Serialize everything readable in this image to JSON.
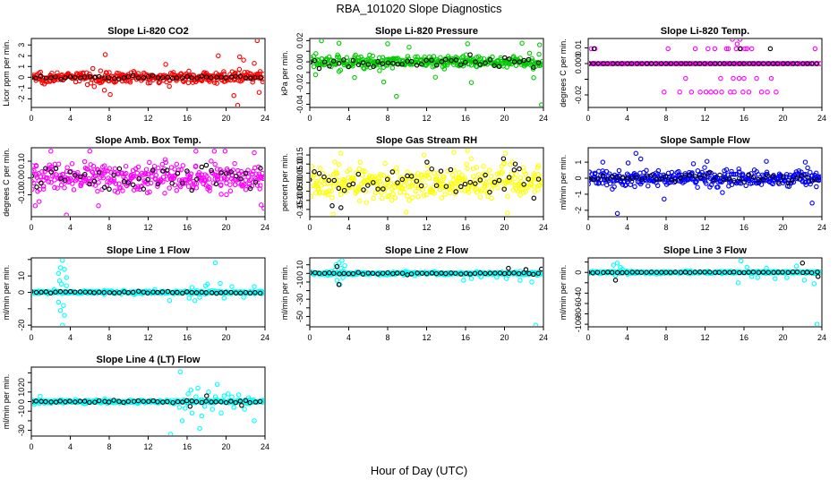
{
  "figure": {
    "title": "RBA_101020  Slope Diagnostics",
    "xlabel": "Hour of Day (UTC)"
  },
  "chart_data": [
    {
      "type": "scatter",
      "title": "Slope Li-820 CO2",
      "ylabel": "Licor ppm per min.",
      "xlim": [
        0,
        24
      ],
      "xticks": [
        0,
        4,
        8,
        12,
        16,
        20,
        24
      ],
      "ylim": [
        -2.8,
        3.6
      ],
      "yticks": [
        -2,
        -1,
        0,
        1,
        2,
        3
      ],
      "color": "#ff0000",
      "base": 0,
      "spread": 0.45,
      "outliers": [
        [
          7.6,
          2.1
        ],
        [
          19.2,
          2.0
        ],
        [
          21.4,
          1.9
        ],
        [
          23.2,
          3.4
        ],
        [
          22.9,
          1.3
        ],
        [
          13.8,
          1.2
        ],
        [
          21.2,
          -2.6
        ],
        [
          20.8,
          -1.7
        ],
        [
          23.4,
          -1.4
        ],
        [
          8.1,
          -1.6
        ],
        [
          7.5,
          -1.2
        ],
        [
          21.8,
          1.6
        ]
      ],
      "black_spread": 0.12
    },
    {
      "type": "scatter",
      "title": "Slope Li-820 Pressure",
      "ylabel": "kPa per min.",
      "xlim": [
        0,
        24
      ],
      "xticks": [
        0,
        4,
        8,
        12,
        16,
        20,
        24
      ],
      "ylim": [
        -0.043,
        0.022
      ],
      "yticks": [
        -0.04,
        -0.03,
        -0.02,
        -0.01,
        0.0,
        0.01,
        0.02
      ],
      "ytick_labels": [
        "-0.04",
        "",
        "-0.02",
        "",
        "0.00",
        "",
        "0.02"
      ],
      "color": "#00cc00",
      "base": 0.0,
      "spread": 0.0055,
      "outliers": [
        [
          1.2,
          0.0198
        ],
        [
          3.0,
          0.0175
        ],
        [
          8.0,
          0.017
        ],
        [
          10.2,
          0.0138
        ],
        [
          16.2,
          0.017
        ],
        [
          21.8,
          0.0175
        ],
        [
          23.6,
          0.016
        ],
        [
          4.6,
          -0.0148
        ],
        [
          7.6,
          -0.019
        ],
        [
          8.9,
          -0.0325
        ],
        [
          16.6,
          -0.0195
        ],
        [
          23.0,
          -0.015
        ],
        [
          23.8,
          -0.0405
        ],
        [
          0.6,
          -0.0122
        ],
        [
          12.9,
          -0.0145
        ]
      ],
      "black_spread": 0.0045
    },
    {
      "type": "scatter",
      "title": "Slope Li-820 Temp.",
      "ylabel": "degrees C per min.",
      "xlim": [
        0,
        24
      ],
      "xticks": [
        0,
        4,
        8,
        12,
        16,
        20,
        24
      ],
      "ylim": [
        -0.028,
        0.016
      ],
      "yticks": [
        -0.02,
        -0.01,
        0.0,
        0.01
      ],
      "ytick_labels": [
        "-0.02",
        "",
        "0.000",
        "0.01"
      ],
      "color": "#ff00ff",
      "base": 0,
      "spread": 0,
      "outliers": [
        [
          0.3,
          0.0095
        ],
        [
          0.7,
          0.0095
        ],
        [
          8.2,
          0.0095
        ],
        [
          9.4,
          -0.0182
        ],
        [
          10.0,
          -0.0095
        ],
        [
          11.0,
          0.0095
        ],
        [
          11.5,
          -0.0182
        ],
        [
          12.6,
          -0.0182
        ],
        [
          13.0,
          0.0095
        ],
        [
          13.7,
          -0.0182
        ],
        [
          14.2,
          0.0095
        ],
        [
          14.6,
          -0.0182
        ],
        [
          15.0,
          -0.0182
        ],
        [
          15.4,
          0.0185
        ],
        [
          15.6,
          0.0155
        ],
        [
          15.9,
          -0.0182
        ],
        [
          16.3,
          0.0095
        ],
        [
          16.8,
          0.0095
        ],
        [
          17.3,
          -0.0095
        ],
        [
          18.4,
          -0.0182
        ],
        [
          19.3,
          -0.0182
        ],
        [
          23.3,
          0.0095
        ],
        [
          12.3,
          0.0095
        ],
        [
          16.0,
          -0.0095
        ],
        [
          14.4,
          0.0095
        ],
        [
          15.2,
          0.0095
        ],
        [
          14.8,
          0.0155
        ],
        [
          15.3,
          0.0125
        ],
        [
          13.1,
          -0.0182
        ],
        [
          13.6,
          -0.0095
        ],
        [
          12.1,
          -0.0182
        ],
        [
          17.8,
          -0.0182
        ],
        [
          18.8,
          -0.0095
        ],
        [
          16.1,
          0.0095
        ],
        [
          15.5,
          -0.0095
        ],
        [
          14.9,
          -0.0095
        ],
        [
          15.7,
          0.0095
        ],
        [
          16.5,
          -0.0182
        ],
        [
          7.8,
          -0.0182
        ],
        [
          10.6,
          -0.0182
        ]
      ],
      "black_spread": 0,
      "black_outliers": [
        [
          15.6,
          0.0095
        ],
        [
          18.7,
          0.0095
        ],
        [
          0.6,
          0.0095
        ]
      ]
    },
    {
      "type": "scatter",
      "title": "Slope Amb. Box Temp.",
      "ylabel": "degrees C per min.",
      "xlim": [
        0,
        24
      ],
      "xticks": [
        0,
        4,
        8,
        12,
        16,
        20,
        24
      ],
      "ylim": [
        -0.23,
        0.18
      ],
      "yticks": [
        -0.1,
        0.0,
        0.1
      ],
      "ytick_labels": [
        "-0.10",
        "0.00",
        "0.10"
      ],
      "color": "#ff00ff",
      "base": 0,
      "spread": 0.075,
      "outliers": [
        [
          0.4,
          -0.165
        ],
        [
          2.0,
          0.16
        ],
        [
          3.6,
          -0.22
        ],
        [
          6.0,
          0.16
        ],
        [
          16.9,
          0.16
        ],
        [
          18.8,
          0.16
        ],
        [
          19.9,
          0.16
        ],
        [
          22.9,
          0.15
        ],
        [
          23.6,
          -0.16
        ],
        [
          23.9,
          -0.18
        ],
        [
          6.9,
          -0.165
        ],
        [
          0.8,
          -0.14
        ]
      ],
      "black_spread": 0.06
    },
    {
      "type": "scatter",
      "title": "Slope Gas Stream RH",
      "ylabel": "percent per min.",
      "xlim": [
        0,
        24
      ],
      "xticks": [
        0,
        4,
        8,
        12,
        16,
        20,
        24
      ],
      "ylim": [
        -0.19,
        0.19
      ],
      "yticks": [
        -0.15,
        -0.1,
        -0.05,
        0.0,
        0.05,
        0.1,
        0.15
      ],
      "ytick_labels": [
        "-0.15",
        "-0.10",
        "-0.05",
        "0.00",
        "0.05",
        "0.10",
        "0.15"
      ],
      "color": "#ffff00",
      "base": 0,
      "spread": 0.085,
      "outliers": [
        [
          2.4,
          -0.175
        ],
        [
          16.2,
          0.175
        ],
        [
          14.8,
          0.165
        ],
        [
          20.1,
          0.16
        ],
        [
          3.2,
          0.16
        ],
        [
          9.9,
          -0.165
        ],
        [
          20.3,
          -0.17
        ]
      ],
      "black_spread": 0.07,
      "black_outliers": [
        [
          2.3,
          -0.13
        ],
        [
          3.2,
          -0.14
        ],
        [
          19.9,
          0.13
        ],
        [
          21.1,
          0.1
        ]
      ]
    },
    {
      "type": "scatter",
      "title": "Slope Sample Flow",
      "ylabel": "ml/min per min.",
      "xlim": [
        0,
        24
      ],
      "xticks": [
        0,
        4,
        8,
        12,
        16,
        20,
        24
      ],
      "ylim": [
        -2.4,
        1.9
      ],
      "yticks": [
        -2,
        -1,
        0,
        1
      ],
      "color": "#0000ff",
      "base": 0,
      "spread": 0.45,
      "outliers": [
        [
          3.0,
          -2.2
        ],
        [
          4.9,
          1.55
        ],
        [
          5.4,
          1.2
        ],
        [
          12.2,
          1.05
        ],
        [
          23.0,
          -1.55
        ],
        [
          7.8,
          -1.3
        ],
        [
          1.5,
          1.0
        ],
        [
          10.8,
          0.9
        ],
        [
          18.3,
          1.05
        ],
        [
          22.3,
          1.0
        ],
        [
          4.1,
          0.95
        ]
      ],
      "black_spread": 0.22
    },
    {
      "type": "scatter",
      "title": "Slope Line 1 Flow",
      "ylabel": "ml/min per min.",
      "xlim": [
        0,
        24
      ],
      "xticks": [
        0,
        4,
        8,
        12,
        16,
        20,
        24
      ],
      "ylim": [
        -21,
        21
      ],
      "yticks": [
        -20,
        -10,
        0,
        10,
        20
      ],
      "ytick_labels": [
        "-20",
        "",
        "0",
        "10",
        ""
      ],
      "color": "#00ffff",
      "base": 0,
      "spread": 0.8,
      "outliers": [
        [
          2.8,
          11.5
        ],
        [
          3.0,
          15.0
        ],
        [
          3.2,
          19.5
        ],
        [
          3.4,
          14.0
        ],
        [
          3.6,
          9.0
        ],
        [
          2.8,
          -6.0
        ],
        [
          3.0,
          -11.0
        ],
        [
          3.2,
          -20.0
        ],
        [
          3.4,
          -14.0
        ],
        [
          2.9,
          7.0
        ],
        [
          3.3,
          -8.0
        ],
        [
          3.6,
          4.0
        ],
        [
          3.1,
          5.0
        ],
        [
          14.2,
          -5.0
        ],
        [
          16.2,
          -3.5
        ],
        [
          16.8,
          -5.0
        ],
        [
          17.3,
          -3.0
        ],
        [
          18.1,
          5.0
        ],
        [
          18.9,
          18.0
        ],
        [
          19.4,
          5.5
        ],
        [
          20.6,
          3.5
        ],
        [
          22.9,
          3.5
        ],
        [
          21.8,
          -3.0
        ],
        [
          17.9,
          4.0
        ],
        [
          19.8,
          -3.5
        ],
        [
          16.5,
          3.0
        ]
      ],
      "black_spread": 0.4
    },
    {
      "type": "scatter",
      "title": "Slope Line 2 Flow",
      "ylabel": "ml/min per min.",
      "xlim": [
        0,
        24
      ],
      "xticks": [
        0,
        4,
        8,
        12,
        16,
        20,
        24
      ],
      "ylim": [
        -62,
        18
      ],
      "yticks": [
        -60,
        -50,
        -40,
        -30,
        -20,
        -10,
        0,
        10
      ],
      "ytick_labels": [
        "",
        "-50",
        "",
        "-30",
        "",
        "-10",
        "0",
        "10"
      ],
      "color": "#00ffff",
      "base": 0,
      "spread": 1.5,
      "outliers": [
        [
          2.7,
          10.0
        ],
        [
          3.0,
          12.0
        ],
        [
          3.3,
          15.0
        ],
        [
          3.6,
          9.0
        ],
        [
          2.8,
          -8.0
        ],
        [
          3.1,
          -13.0
        ],
        [
          3.4,
          -5.0
        ],
        [
          3.2,
          6.0
        ],
        [
          2.6,
          4.0
        ],
        [
          15.8,
          -8.0
        ],
        [
          16.6,
          -6.0
        ],
        [
          20.2,
          -6.0
        ],
        [
          21.6,
          -8.0
        ],
        [
          22.8,
          -10.0
        ],
        [
          23.2,
          -60.0
        ],
        [
          22.2,
          4.0
        ],
        [
          19.2,
          -4.5
        ],
        [
          17.6,
          -4.0
        ]
      ],
      "black_spread": 0.8,
      "black_outliers": [
        [
          3.0,
          -13.0
        ],
        [
          2.8,
          8.0
        ],
        [
          20.4,
          6.0
        ],
        [
          22.2,
          4.5
        ],
        [
          23.8,
          5.0
        ]
      ]
    },
    {
      "type": "scatter",
      "title": "Slope Line 3 Flow",
      "ylabel": "ml/min per min.",
      "xlim": [
        0,
        24
      ],
      "xticks": [
        0,
        4,
        8,
        12,
        16,
        20,
        24
      ],
      "ylim": [
        -105,
        28
      ],
      "yticks": [
        -100,
        -80,
        -60,
        -40,
        -20,
        0,
        20
      ],
      "ytick_labels": [
        "-100",
        "-80",
        "-60",
        "-40",
        "",
        "0",
        ""
      ],
      "color": "#00ffff",
      "base": 0,
      "spread": 2.0,
      "outliers": [
        [
          2.6,
          14.0
        ],
        [
          3.0,
          18.0
        ],
        [
          3.3,
          10.0
        ],
        [
          3.5,
          6.0
        ],
        [
          2.8,
          -6.0
        ],
        [
          15.4,
          -20.0
        ],
        [
          15.7,
          22.0
        ],
        [
          17.4,
          -10.0
        ],
        [
          19.2,
          -12.0
        ],
        [
          20.4,
          -10.0
        ],
        [
          21.4,
          12.0
        ],
        [
          22.2,
          -15.0
        ],
        [
          23.2,
          -22.0
        ],
        [
          23.5,
          -100.0
        ],
        [
          16.3,
          10.0
        ],
        [
          18.3,
          8.0
        ],
        [
          16.8,
          -8.0
        ]
      ],
      "black_spread": 0.8,
      "black_outliers": [
        [
          22.0,
          18.0
        ],
        [
          23.6,
          -8.0
        ],
        [
          2.8,
          -15.0
        ]
      ]
    },
    {
      "type": "scatter",
      "title": "Slope Line 4 (LT) Flow",
      "ylabel": "ml/min per min.",
      "xlim": [
        0,
        24
      ],
      "xticks": [
        0,
        4,
        8,
        12,
        16,
        20,
        24
      ],
      "ylim": [
        -36,
        36
      ],
      "yticks": [
        -30,
        -20,
        -10,
        0,
        10,
        20,
        30
      ],
      "ytick_labels": [
        "-30",
        "",
        "-10",
        "0",
        "10",
        "20",
        ""
      ],
      "color": "#00ffff",
      "base": 0,
      "spread": 1.5,
      "outliers": [
        [
          0.3,
          -3.0
        ],
        [
          0.9,
          5.5
        ],
        [
          14.3,
          -34.0
        ],
        [
          15.3,
          31.0
        ],
        [
          15.5,
          -20.0
        ],
        [
          16.1,
          8.0
        ],
        [
          16.5,
          -12.0
        ],
        [
          17.1,
          14.0
        ],
        [
          17.5,
          -15.0
        ],
        [
          18.2,
          10.0
        ],
        [
          18.6,
          -8.0
        ],
        [
          19.1,
          18.0
        ],
        [
          19.5,
          -12.0
        ],
        [
          20.2,
          8.0
        ],
        [
          20.8,
          -6.0
        ],
        [
          21.3,
          7.0
        ],
        [
          21.9,
          -8.0
        ],
        [
          22.9,
          -20.0
        ],
        [
          22.3,
          4.0
        ],
        [
          16.9,
          5.0
        ],
        [
          17.8,
          -5.0
        ],
        [
          18.9,
          5.0
        ],
        [
          15.8,
          -7.0
        ],
        [
          16.4,
          12.0
        ],
        [
          19.8,
          6.0
        ],
        [
          15.2,
          -6.0
        ],
        [
          17.3,
          -28.0
        ],
        [
          20.6,
          5.0
        ]
      ],
      "black_spread": 1.0,
      "black_outliers": [
        [
          16.3,
          -5.0
        ],
        [
          18.0,
          6.0
        ],
        [
          21.6,
          -4.0
        ]
      ]
    }
  ]
}
